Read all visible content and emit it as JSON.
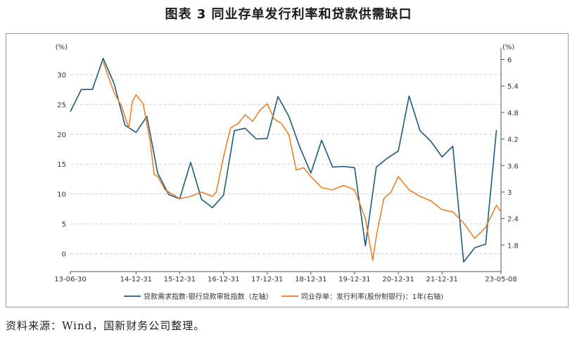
{
  "title": "图表 3  同业存单发行利率和贷款供需缺口",
  "source": "资料来源：Wind，国新财务公司整理。",
  "chart_data": {
    "type": "line",
    "left_unit": "(%)",
    "right_unit": "(%)",
    "left_ylim": [
      -3,
      34
    ],
    "right_ylim": [
      1.2,
      6.2
    ],
    "left_ticks": [
      "0",
      "5",
      "10",
      "15",
      "20",
      "25",
      "30"
    ],
    "right_ticks": [
      "1.8",
      "2.4",
      "3",
      "3.6",
      "4.2",
      "4.8",
      "5.4",
      "6"
    ],
    "x_ticks": [
      "13-06-30",
      "14-12-31",
      "15-12-31",
      "16-12-31",
      "17-12-31",
      "18-12-31",
      "19-12-31",
      "20-12-31",
      "21-12-31",
      "23-05-08"
    ],
    "colors": {
      "series1": "#1f5a78",
      "series2": "#ea7b25"
    },
    "series": [
      {
        "name": "贷款需求指数-银行贷款审批指数（左轴）",
        "axis": "left",
        "points": [
          [
            "2013-06-30",
            23.8
          ],
          [
            "2013-09-30",
            27.5
          ],
          [
            "2013-12-31",
            27.5
          ],
          [
            "2014-03-31",
            32.7
          ],
          [
            "2014-06-30",
            28.5
          ],
          [
            "2014-09-30",
            21.5
          ],
          [
            "2014-12-31",
            20.3
          ],
          [
            "2015-03-31",
            23.0
          ],
          [
            "2015-06-30",
            13.5
          ],
          [
            "2015-09-30",
            9.9
          ],
          [
            "2015-12-31",
            9.2
          ],
          [
            "2016-03-31",
            15.3
          ],
          [
            "2016-06-30",
            9.1
          ],
          [
            "2016-09-30",
            7.7
          ],
          [
            "2016-12-31",
            9.8
          ],
          [
            "2017-03-31",
            20.6
          ],
          [
            "2017-06-30",
            21.0
          ],
          [
            "2017-09-30",
            19.2
          ],
          [
            "2017-12-31",
            19.3
          ],
          [
            "2018-03-31",
            26.3
          ],
          [
            "2018-06-30",
            23.0
          ],
          [
            "2018-09-30",
            17.8
          ],
          [
            "2018-12-31",
            13.5
          ],
          [
            "2019-03-31",
            19.0
          ],
          [
            "2019-06-30",
            14.5
          ],
          [
            "2019-09-30",
            14.6
          ],
          [
            "2019-12-31",
            14.4
          ],
          [
            "2020-03-31",
            1.3
          ],
          [
            "2020-06-30",
            14.5
          ],
          [
            "2020-09-30",
            16.0
          ],
          [
            "2020-12-31",
            17.2
          ],
          [
            "2021-03-31",
            26.4
          ],
          [
            "2021-06-30",
            20.6
          ],
          [
            "2021-09-30",
            18.8
          ],
          [
            "2021-12-31",
            16.2
          ],
          [
            "2022-03-31",
            18.0
          ],
          [
            "2022-06-30",
            -1.4
          ],
          [
            "2022-09-30",
            1.0
          ],
          [
            "2022-12-31",
            1.6
          ],
          [
            "2023-03-31",
            20.7
          ]
        ]
      },
      {
        "name": "同业存单：发行利率(股份制银行)：1年(右轴)",
        "axis": "right",
        "points": [
          [
            "2014-03-31",
            5.95
          ],
          [
            "2014-06-30",
            5.25
          ],
          [
            "2014-08-31",
            4.95
          ],
          [
            "2014-10-31",
            4.45
          ],
          [
            "2014-11-30",
            5.05
          ],
          [
            "2014-12-31",
            5.2
          ],
          [
            "2015-02-28",
            5.0
          ],
          [
            "2015-04-30",
            4.1
          ],
          [
            "2015-05-31",
            3.4
          ],
          [
            "2015-06-30",
            3.35
          ],
          [
            "2015-08-31",
            3.05
          ],
          [
            "2015-10-31",
            2.95
          ],
          [
            "2015-12-31",
            2.85
          ],
          [
            "2016-03-31",
            2.9
          ],
          [
            "2016-06-30",
            3.0
          ],
          [
            "2016-09-30",
            2.9
          ],
          [
            "2016-10-31",
            3.0
          ],
          [
            "2016-12-31",
            3.8
          ],
          [
            "2017-02-28",
            4.45
          ],
          [
            "2017-04-30",
            4.55
          ],
          [
            "2017-06-30",
            4.75
          ],
          [
            "2017-08-31",
            4.6
          ],
          [
            "2017-10-31",
            4.85
          ],
          [
            "2017-12-31",
            5.0
          ],
          [
            "2018-02-28",
            4.65
          ],
          [
            "2018-04-30",
            4.55
          ],
          [
            "2018-06-30",
            4.3
          ],
          [
            "2018-08-31",
            3.5
          ],
          [
            "2018-10-31",
            3.55
          ],
          [
            "2018-12-31",
            3.35
          ],
          [
            "2019-03-31",
            3.1
          ],
          [
            "2019-06-30",
            3.05
          ],
          [
            "2019-09-30",
            3.15
          ],
          [
            "2019-12-31",
            3.05
          ],
          [
            "2020-03-31",
            2.4
          ],
          [
            "2020-05-31",
            1.45
          ],
          [
            "2020-06-30",
            2.0
          ],
          [
            "2020-08-31",
            2.85
          ],
          [
            "2020-10-31",
            3.0
          ],
          [
            "2020-12-31",
            3.35
          ],
          [
            "2021-03-31",
            3.05
          ],
          [
            "2021-06-30",
            2.9
          ],
          [
            "2021-09-30",
            2.8
          ],
          [
            "2021-12-31",
            2.6
          ],
          [
            "2022-03-31",
            2.55
          ],
          [
            "2022-06-30",
            2.3
          ],
          [
            "2022-09-30",
            1.95
          ],
          [
            "2022-12-31",
            2.2
          ],
          [
            "2023-03-31",
            2.7
          ],
          [
            "2023-05-08",
            2.55
          ]
        ]
      }
    ]
  }
}
